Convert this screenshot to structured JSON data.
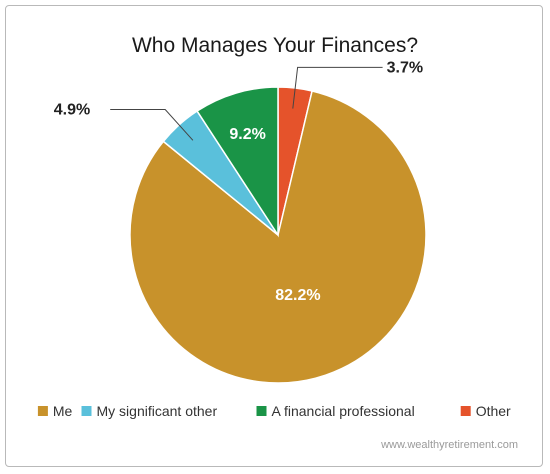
{
  "chart_data": {
    "type": "pie",
    "title": "Who Manages Your Finances?",
    "slices": [
      {
        "name": "Other",
        "value": 3.7,
        "label": "3.7%",
        "color": "#e5532b"
      },
      {
        "name": "Me",
        "value": 82.2,
        "label": "82.2%",
        "color": "#c8922b"
      },
      {
        "name": "My significant other",
        "value": 4.9,
        "label": "4.9%",
        "color": "#5ac0db"
      },
      {
        "name": "A financial professional",
        "value": 9.2,
        "label": "9.2%",
        "color": "#1a9447"
      }
    ],
    "legend_order": [
      "Me",
      "My significant other",
      "A financial professional",
      "Other"
    ],
    "legend_position": "bottom",
    "start_angle_deg": 0,
    "direction": "clockwise"
  },
  "footer": "www.wealthyretirement.com"
}
